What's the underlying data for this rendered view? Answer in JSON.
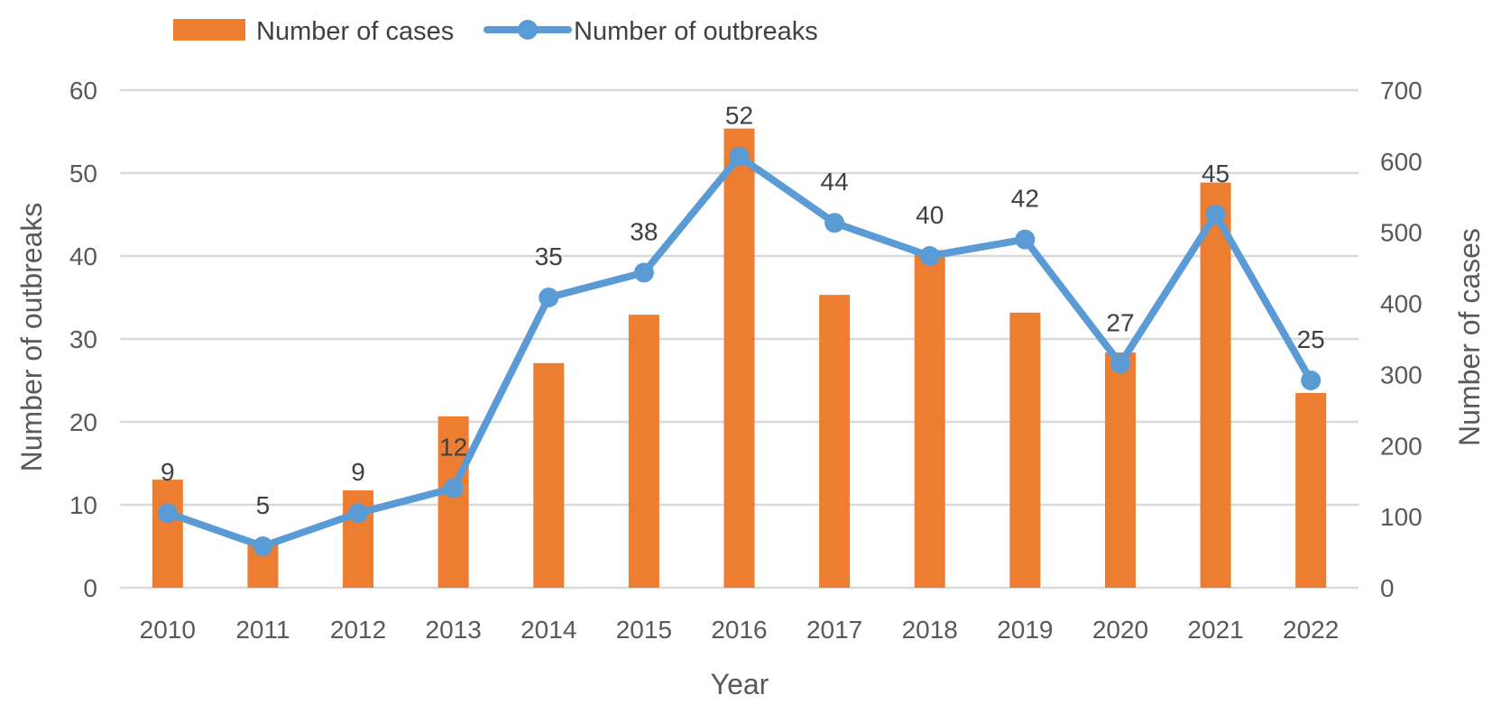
{
  "chart_data": {
    "type": "bar",
    "title": "",
    "xlabel": "Year",
    "ylabel": "Number of outbreaks",
    "y2label": "Number of cases",
    "categories": [
      "2010",
      "2011",
      "2012",
      "2013",
      "2014",
      "2015",
      "2016",
      "2017",
      "2018",
      "2019",
      "2020",
      "2021",
      "2022"
    ],
    "ylim": [
      0,
      60
    ],
    "y2lim": [
      0,
      700
    ],
    "yticks": [
      "0",
      "10",
      "20",
      "30",
      "40",
      "50",
      "60"
    ],
    "y2ticks": [
      "0",
      "100",
      "200",
      "300",
      "400",
      "500",
      "600",
      "700"
    ],
    "grid": true,
    "legend_position": "top-left",
    "series": [
      {
        "name": "Number of cases",
        "type": "bar",
        "axis": "right",
        "color": "#ED7D31",
        "values": [
          152,
          64,
          137,
          241,
          316,
          384,
          646,
          412,
          475,
          387,
          331,
          570,
          274
        ]
      },
      {
        "name": "Number of outbreaks",
        "type": "line",
        "axis": "left",
        "color": "#5B9BD5",
        "values": [
          9,
          5,
          9,
          12,
          35,
          38,
          52,
          44,
          40,
          42,
          27,
          45,
          25
        ],
        "labels": [
          "9",
          "5",
          "9",
          "12",
          "35",
          "38",
          "52",
          "44",
          "40",
          "42",
          "27",
          "45",
          "25"
        ]
      }
    ]
  }
}
